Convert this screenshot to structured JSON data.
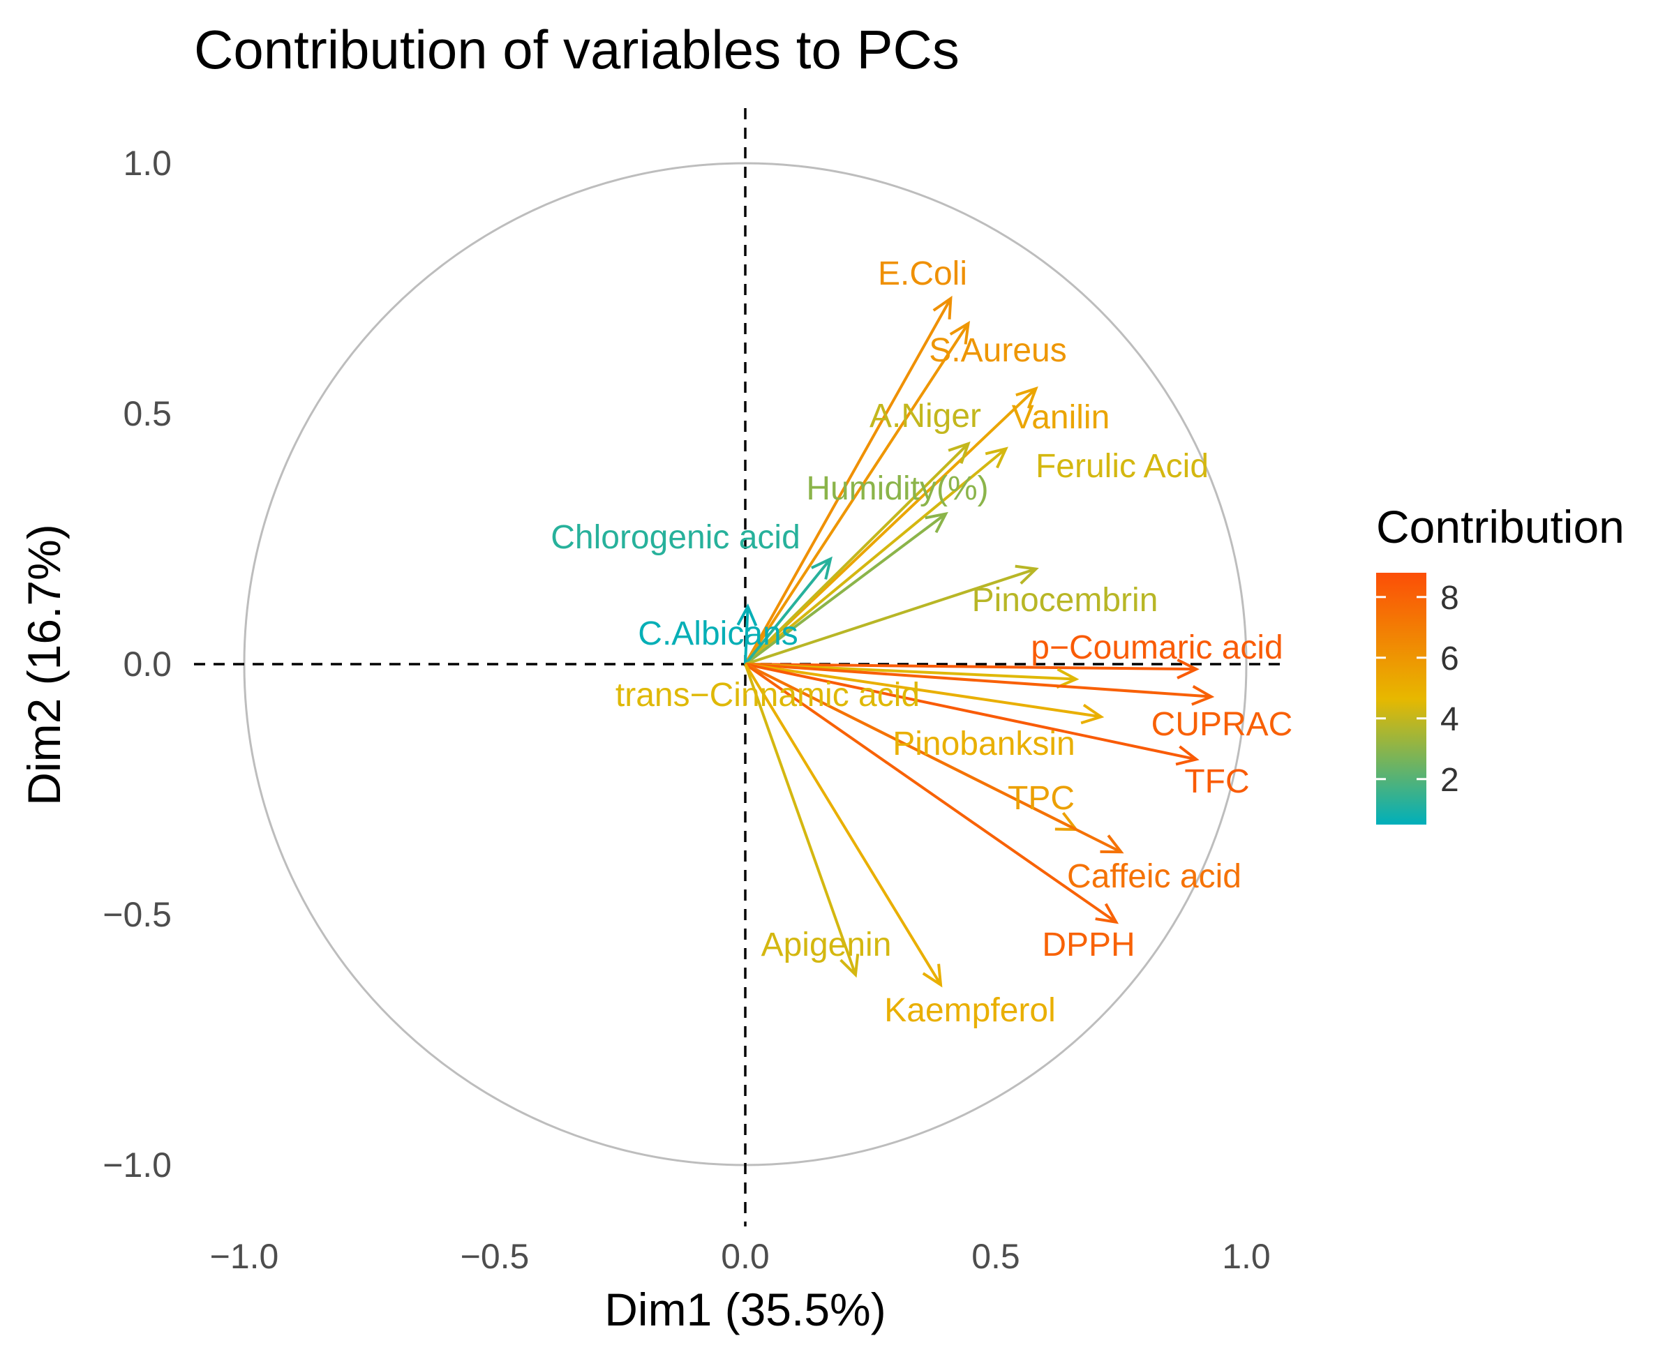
{
  "chart_data": {
    "type": "scatter",
    "subtype": "pca-variable-correlation-circle",
    "title": "Contribution of variables to PCs",
    "xlabel": "Dim1 (35.5%)",
    "ylabel": "Dim2 (16.7%)",
    "xlim": [
      -1.1,
      1.1
    ],
    "ylim": [
      -1.1,
      1.1
    ],
    "xticks": [
      -1.0,
      -0.5,
      0.0,
      0.5,
      1.0
    ],
    "yticks": [
      -1.0,
      -0.5,
      0.0,
      0.5,
      1.0
    ],
    "xtick_labels": [
      "−1.0",
      "−0.5",
      "0.0",
      "0.5",
      "1.0"
    ],
    "ytick_labels": [
      "−1.0",
      "−0.5",
      "0.0",
      "0.5",
      "1.0"
    ],
    "grid": false,
    "unit_circle": true,
    "legend": {
      "title": "Contribution",
      "position": "right",
      "range": [
        0.5,
        8.8
      ],
      "ticks": [
        2,
        4,
        6,
        8
      ],
      "tick_labels": [
        "2",
        "4",
        "6",
        "8"
      ],
      "colors": [
        "#00AFBB",
        "#E7B800",
        "#FC4E07"
      ]
    },
    "variables": [
      {
        "name": "E.Coli",
        "x": 0.41,
        "y": 0.73,
        "contrib": 6.2
      },
      {
        "name": "S.Aureus",
        "x": 0.445,
        "y": 0.68,
        "contrib": 6.0
      },
      {
        "name": "Vanilin",
        "x": 0.58,
        "y": 0.55,
        "contrib": 5.4
      },
      {
        "name": "A.Niger",
        "x": 0.445,
        "y": 0.44,
        "contrib": 4.0
      },
      {
        "name": "Ferulic Acid",
        "x": 0.52,
        "y": 0.43,
        "contrib": 4.3
      },
      {
        "name": "Humidity(%)",
        "x": 0.4,
        "y": 0.3,
        "contrib": 3.0
      },
      {
        "name": "Chlorogenic acid",
        "x": 0.17,
        "y": 0.21,
        "contrib": 1.2
      },
      {
        "name": "C.Albicans",
        "x": 0.005,
        "y": 0.115,
        "contrib": 0.6
      },
      {
        "name": "Pinocembrin",
        "x": 0.58,
        "y": 0.19,
        "contrib": 3.8
      },
      {
        "name": "p−Coumaric acid",
        "x": 0.9,
        "y": -0.01,
        "contrib": 8.3
      },
      {
        "name": "trans−Cinnamic acid",
        "x": 0.66,
        "y": -0.03,
        "contrib": 4.5
      },
      {
        "name": "CUPRAC",
        "x": 0.93,
        "y": -0.065,
        "contrib": 8.1
      },
      {
        "name": "Pinobanksin",
        "x": 0.71,
        "y": -0.105,
        "contrib": 5.0
      },
      {
        "name": "TFC",
        "x": 0.9,
        "y": -0.19,
        "contrib": 8.3
      },
      {
        "name": "TPC",
        "x": 0.66,
        "y": -0.33,
        "contrib": 5.6
      },
      {
        "name": "Caffeic acid",
        "x": 0.75,
        "y": -0.375,
        "contrib": 7.4
      },
      {
        "name": "DPPH",
        "x": 0.74,
        "y": -0.515,
        "contrib": 8.0
      },
      {
        "name": "Apigenin",
        "x": 0.22,
        "y": -0.62,
        "contrib": 4.3
      },
      {
        "name": "Kaempferol",
        "x": 0.39,
        "y": -0.64,
        "contrib": 5.0
      }
    ]
  }
}
